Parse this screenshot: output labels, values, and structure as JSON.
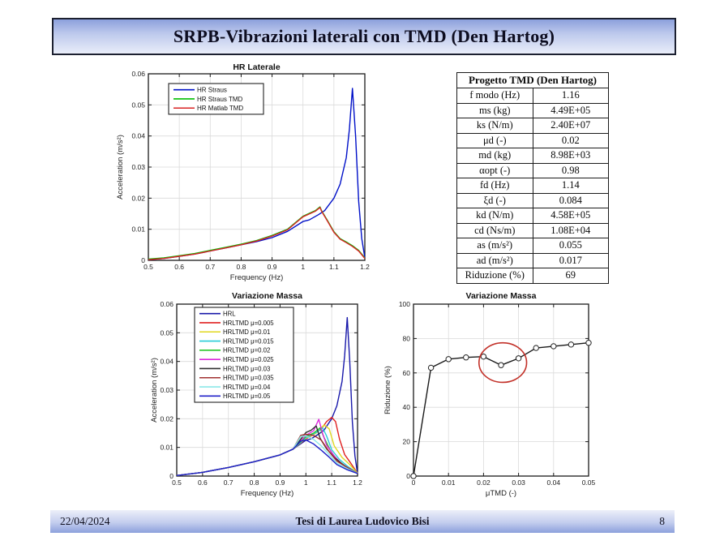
{
  "slide": {
    "title": "SRPB-Vibrazioni laterali con TMD (Den Hartog)",
    "footer": {
      "date": "22/04/2024",
      "center": "Tesi di Laurea Ludovico Bisi",
      "page": "8"
    },
    "colors": {
      "bar_gradient_dark": "#8ca0dc",
      "bar_gradient_light": "#e9edf9",
      "bar_border": "#1c2030",
      "annotation_red": "#c23028"
    }
  },
  "table": {
    "title": "Progetto TMD (Den Hartog)",
    "rows": [
      [
        "f modo (Hz)",
        "1.16"
      ],
      [
        "ms (kg)",
        "4.49E+05"
      ],
      [
        "ks (N/m)",
        "2.40E+07"
      ],
      [
        "μd (-)",
        "0.02"
      ],
      [
        "md (kg)",
        "8.98E+03"
      ],
      [
        "αopt (-)",
        "0.98"
      ],
      [
        "fd (Hz)",
        "1.14"
      ],
      [
        "ξd (-)",
        "0.084"
      ],
      [
        "kd (N/m)",
        "4.58E+05"
      ],
      [
        "cd (Ns/m)",
        "1.08E+04"
      ],
      [
        "as (m/s²)",
        "0.055"
      ],
      [
        "ad (m/s²)",
        "0.017"
      ],
      [
        "Riduzione (%)",
        "69"
      ]
    ]
  },
  "chart_data": [
    {
      "type": "line",
      "title": "HR Laterale",
      "xlabel": "Frequency (Hz)",
      "ylabel": "Acceleration (m/s²)",
      "xlim": [
        0.5,
        1.2
      ],
      "ylim": [
        0,
        0.06
      ],
      "grid": true,
      "legend_position": "upper-left",
      "xticks": [
        0.5,
        0.6,
        0.7,
        0.8,
        0.9,
        1,
        1.1,
        1.2
      ],
      "xtick_labels": [
        "0.5",
        "0.6",
        "0.7",
        "0.8",
        "0.9",
        "1",
        "1.1",
        "1.2"
      ],
      "yticks": [
        0,
        0.01,
        0.02,
        0.03,
        0.04,
        0.05,
        0.06
      ],
      "ytick_labels": [
        "0",
        "0.01",
        "0.02",
        "0.03",
        "0.04",
        "0.05",
        "0.06"
      ],
      "series": [
        {
          "name": "HR Straus",
          "color": "#0010c8",
          "x": [
            0.5,
            0.55,
            0.6,
            0.65,
            0.7,
            0.75,
            0.8,
            0.85,
            0.9,
            0.95,
            1.0,
            1.02,
            1.05,
            1.07,
            1.1,
            1.12,
            1.14,
            1.15,
            1.16,
            1.17,
            1.18,
            1.19,
            1.2
          ],
          "y": [
            0.0002,
            0.0006,
            0.0013,
            0.002,
            0.003,
            0.004,
            0.005,
            0.006,
            0.0073,
            0.0093,
            0.0125,
            0.013,
            0.0147,
            0.016,
            0.02,
            0.0245,
            0.033,
            0.042,
            0.0553,
            0.04,
            0.019,
            0.007,
            0.0008
          ]
        },
        {
          "name": "HR Straus TMD",
          "color": "#00be00",
          "x": [
            0.5,
            0.55,
            0.6,
            0.65,
            0.7,
            0.75,
            0.8,
            0.85,
            0.9,
            0.95,
            1.0,
            1.02,
            1.04,
            1.055,
            1.06,
            1.08,
            1.1,
            1.12,
            1.14,
            1.16,
            1.18,
            1.2
          ],
          "y": [
            0.0004,
            0.0008,
            0.0015,
            0.0022,
            0.0032,
            0.0042,
            0.0052,
            0.0064,
            0.008,
            0.01,
            0.0142,
            0.0151,
            0.016,
            0.0172,
            0.016,
            0.0127,
            0.0092,
            0.007,
            0.0059,
            0.0047,
            0.0032,
            0.0008
          ]
        },
        {
          "name": "HR Matlab TMD",
          "color": "#d92323",
          "x": [
            0.5,
            0.55,
            0.6,
            0.65,
            0.7,
            0.75,
            0.8,
            0.85,
            0.9,
            0.95,
            1.0,
            1.02,
            1.04,
            1.055,
            1.06,
            1.08,
            1.1,
            1.12,
            1.14,
            1.16,
            1.18,
            1.2
          ],
          "y": [
            0.0002,
            0.0006,
            0.0013,
            0.002,
            0.003,
            0.004,
            0.005,
            0.0062,
            0.0078,
            0.0098,
            0.014,
            0.0149,
            0.0158,
            0.017,
            0.0158,
            0.0125,
            0.009,
            0.0068,
            0.0057,
            0.0045,
            0.003,
            0.0006
          ]
        }
      ]
    },
    {
      "type": "line",
      "title": "Variazione Massa",
      "xlabel": "Frequency (Hz)",
      "ylabel": "Acceleration (m/s²)",
      "xlim": [
        0.5,
        1.2
      ],
      "ylim": [
        0,
        0.06
      ],
      "grid": true,
      "legend_position": "upper-left",
      "xticks": [
        0.5,
        0.6,
        0.7,
        0.8,
        0.9,
        1,
        1.1,
        1.2
      ],
      "xtick_labels": [
        "0.5",
        "0.6",
        "0.7",
        "0.8",
        "0.9",
        "1",
        "1.1",
        "1.2"
      ],
      "yticks": [
        0,
        0.01,
        0.02,
        0.03,
        0.04,
        0.05,
        0.06
      ],
      "ytick_labels": [
        "0",
        "0.01",
        "0.02",
        "0.03",
        "0.04",
        "0.05",
        "0.06"
      ],
      "series": [
        {
          "name": "HRL",
          "color": "#1818aa",
          "x": [
            0.5,
            0.6,
            0.7,
            0.8,
            0.9,
            0.95,
            1.0,
            1.02,
            1.05,
            1.07,
            1.1,
            1.12,
            1.14,
            1.15,
            1.16,
            1.17,
            1.18,
            1.19,
            1.2
          ],
          "y": [
            0.0002,
            0.0013,
            0.003,
            0.005,
            0.0074,
            0.0094,
            0.0125,
            0.013,
            0.0147,
            0.016,
            0.02,
            0.0245,
            0.033,
            0.042,
            0.0553,
            0.04,
            0.019,
            0.007,
            0.0008
          ]
        },
        {
          "name": "HRLTMD μ=0.005",
          "color": "#e02020",
          "x": [
            0.5,
            0.6,
            0.7,
            0.8,
            0.9,
            0.95,
            1.0,
            1.03,
            1.06,
            1.08,
            1.1,
            1.115,
            1.13,
            1.15,
            1.17,
            1.2
          ],
          "y": [
            0.0002,
            0.0013,
            0.003,
            0.005,
            0.0074,
            0.0094,
            0.013,
            0.0145,
            0.0165,
            0.019,
            0.0205,
            0.019,
            0.013,
            0.0075,
            0.005,
            0.001
          ]
        },
        {
          "name": "HRLTMD μ=0.01",
          "color": "#e0d820",
          "x": [
            0.5,
            0.6,
            0.7,
            0.8,
            0.9,
            0.95,
            1.0,
            1.04,
            1.07,
            1.09,
            1.11,
            1.14,
            1.17,
            1.2
          ],
          "y": [
            0.0002,
            0.0013,
            0.003,
            0.005,
            0.0074,
            0.0094,
            0.0132,
            0.015,
            0.0178,
            0.0165,
            0.0105,
            0.0065,
            0.004,
            0.001
          ]
        },
        {
          "name": "HRLTMD μ=0.015",
          "color": "#28ccd8",
          "x": [
            0.5,
            0.6,
            0.7,
            0.8,
            0.9,
            0.95,
            1.0,
            1.04,
            1.065,
            1.08,
            1.1,
            1.13,
            1.16,
            1.2
          ],
          "y": [
            0.0002,
            0.0013,
            0.003,
            0.005,
            0.0074,
            0.0094,
            0.0134,
            0.0152,
            0.0168,
            0.014,
            0.0092,
            0.0058,
            0.0035,
            0.0009
          ]
        },
        {
          "name": "HRLTMD μ=0.02",
          "color": "#28c828",
          "x": [
            0.5,
            0.6,
            0.7,
            0.8,
            0.9,
            0.95,
            1.0,
            1.03,
            1.055,
            1.07,
            1.1,
            1.13,
            1.16,
            1.2
          ],
          "y": [
            0.0002,
            0.0013,
            0.003,
            0.005,
            0.0074,
            0.0094,
            0.0138,
            0.015,
            0.0168,
            0.0135,
            0.008,
            0.005,
            0.003,
            0.0009
          ]
        },
        {
          "name": "HRLTMD μ=0.025",
          "color": "#dc28dc",
          "x": [
            0.5,
            0.6,
            0.7,
            0.8,
            0.9,
            0.95,
            1.0,
            1.03,
            1.05,
            1.065,
            1.08,
            1.11,
            1.14,
            1.2
          ],
          "y": [
            0.0002,
            0.0013,
            0.003,
            0.005,
            0.0074,
            0.0094,
            0.0142,
            0.0158,
            0.0198,
            0.0148,
            0.0108,
            0.007,
            0.0042,
            0.0009
          ]
        },
        {
          "name": "HRLTMD μ=0.03",
          "color": "#303030",
          "x": [
            0.5,
            0.6,
            0.7,
            0.8,
            0.9,
            0.95,
            1.0,
            1.02,
            1.04,
            1.055,
            1.08,
            1.11,
            1.15,
            1.2
          ],
          "y": [
            0.0002,
            0.0013,
            0.003,
            0.005,
            0.0074,
            0.0094,
            0.0152,
            0.016,
            0.0175,
            0.0132,
            0.0095,
            0.0065,
            0.0035,
            0.0009
          ]
        },
        {
          "name": "HRLTMD μ=0.035",
          "color": "#a03030",
          "x": [
            0.5,
            0.6,
            0.7,
            0.8,
            0.9,
            0.95,
            0.98,
            1.0,
            1.03,
            1.06,
            1.09,
            1.12,
            1.16,
            1.2
          ],
          "y": [
            0.0002,
            0.0013,
            0.003,
            0.005,
            0.0074,
            0.0094,
            0.0142,
            0.0146,
            0.0142,
            0.0125,
            0.0085,
            0.0052,
            0.003,
            0.0009
          ]
        },
        {
          "name": "HRLTMD μ=0.04",
          "color": "#8ce8e8",
          "x": [
            0.5,
            0.6,
            0.7,
            0.8,
            0.9,
            0.95,
            0.98,
            1.0,
            1.03,
            1.06,
            1.09,
            1.12,
            1.16,
            1.2
          ],
          "y": [
            0.0002,
            0.0013,
            0.003,
            0.005,
            0.0074,
            0.0094,
            0.0138,
            0.014,
            0.0128,
            0.0105,
            0.0075,
            0.0045,
            0.0026,
            0.0009
          ]
        },
        {
          "name": "HRLTMD μ=0.05",
          "color": "#2020c8",
          "x": [
            0.5,
            0.6,
            0.7,
            0.8,
            0.9,
            0.95,
            0.98,
            1.0,
            1.03,
            1.06,
            1.09,
            1.12,
            1.16,
            1.2
          ],
          "y": [
            0.0002,
            0.0013,
            0.003,
            0.005,
            0.0074,
            0.0094,
            0.0122,
            0.0126,
            0.0112,
            0.009,
            0.0066,
            0.004,
            0.0022,
            0.0009
          ]
        }
      ]
    },
    {
      "type": "line",
      "title": "Variazione Massa",
      "xlabel": "μTMD (-)",
      "ylabel": "Riduzione (%)",
      "xlim": [
        0,
        0.05
      ],
      "ylim": [
        0,
        100
      ],
      "grid": true,
      "legend_position": "none",
      "xticks": [
        0,
        0.01,
        0.02,
        0.03,
        0.04,
        0.05
      ],
      "xtick_labels": [
        "0",
        "0.01",
        "0.02",
        "0.03",
        "0.04",
        "0.05"
      ],
      "yticks": [
        0,
        20,
        40,
        60,
        80,
        100
      ],
      "ytick_labels": [
        "0",
        "20",
        "40",
        "60",
        "80",
        "100"
      ],
      "series": [
        {
          "name": "Riduzione",
          "color": "#1a1a1a",
          "marker": "circle",
          "x": [
            0,
            0.005,
            0.01,
            0.015,
            0.02,
            0.025,
            0.03,
            0.035,
            0.04,
            0.045,
            0.05
          ],
          "y": [
            0,
            63,
            68,
            69,
            69.5,
            64.5,
            68.5,
            74.5,
            75.5,
            76.5,
            77.5
          ]
        }
      ],
      "annotations": [
        {
          "type": "ellipse",
          "cx": 0.0255,
          "cy": 66,
          "rx": 0.0068,
          "ry": 11.5,
          "color": "#c23028"
        }
      ]
    }
  ]
}
